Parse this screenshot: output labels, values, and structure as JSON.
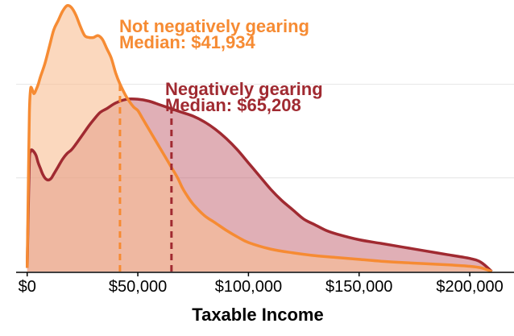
{
  "chart_data": {
    "type": "area",
    "xlabel": "Taxable Income",
    "xlim": [
      -5000,
      220000
    ],
    "ylim": [
      0,
      1.45
    ],
    "x_ticks": [
      {
        "value": 0,
        "label": "$0"
      },
      {
        "value": 50000,
        "label": "$50,000"
      },
      {
        "value": 100000,
        "label": "$100,000"
      },
      {
        "value": 150000,
        "label": "$150,000"
      },
      {
        "value": 200000,
        "label": "$200,000"
      }
    ],
    "y_gridlines": [
      0.5,
      1.0
    ],
    "grid": "horizontal",
    "series": [
      {
        "key": "not_neg",
        "color": "#f68b33",
        "fill": "#f8be93",
        "fill_opacity": 0.6,
        "x": [
          0,
          500,
          1000,
          1500,
          2000,
          3000,
          4000,
          5000,
          6000,
          8000,
          10000,
          12000,
          14000,
          16000,
          18000,
          20000,
          22000,
          24000,
          26000,
          28000,
          30000,
          32000,
          34000,
          36000,
          38000,
          40000,
          42000,
          45000,
          48000,
          50000,
          52000,
          55000,
          58000,
          60000,
          62000,
          65000,
          68000,
          70000,
          72000,
          75000,
          80000,
          85000,
          90000,
          95000,
          100000,
          110000,
          120000,
          130000,
          140000,
          150000,
          160000,
          170000,
          180000,
          190000,
          200000,
          205000,
          210000
        ],
        "y": [
          0.02,
          0.45,
          0.85,
          0.97,
          0.98,
          0.95,
          0.97,
          1.0,
          1.04,
          1.11,
          1.2,
          1.29,
          1.34,
          1.39,
          1.42,
          1.41,
          1.37,
          1.31,
          1.26,
          1.25,
          1.25,
          1.26,
          1.24,
          1.19,
          1.14,
          1.06,
          1.0,
          0.93,
          0.88,
          0.86,
          0.82,
          0.76,
          0.7,
          0.66,
          0.62,
          0.56,
          0.5,
          0.45,
          0.41,
          0.36,
          0.3,
          0.26,
          0.22,
          0.185,
          0.155,
          0.12,
          0.1,
          0.085,
          0.075,
          0.065,
          0.055,
          0.048,
          0.042,
          0.036,
          0.028,
          0.02,
          0.0
        ],
        "median": 41934,
        "annotation": [
          "Not negatively gearing",
          "Median: $41,934"
        ]
      },
      {
        "key": "neg",
        "color": "#a02a31",
        "fill": "#c2606d",
        "fill_opacity": 0.5,
        "x": [
          0,
          500,
          1000,
          1500,
          2000,
          3000,
          4000,
          5000,
          6000,
          7000,
          8000,
          9000,
          10000,
          11000,
          12000,
          14000,
          16000,
          18000,
          20000,
          22000,
          25000,
          28000,
          30000,
          33000,
          36000,
          40000,
          45000,
          50000,
          55000,
          60000,
          65000,
          70000,
          75000,
          80000,
          85000,
          90000,
          95000,
          100000,
          105000,
          110000,
          115000,
          120000,
          125000,
          130000,
          135000,
          140000,
          150000,
          160000,
          170000,
          180000,
          190000,
          200000,
          205000,
          210000
        ],
        "y": [
          0.02,
          0.33,
          0.6,
          0.64,
          0.65,
          0.64,
          0.62,
          0.58,
          0.55,
          0.52,
          0.5,
          0.49,
          0.49,
          0.5,
          0.52,
          0.56,
          0.6,
          0.63,
          0.65,
          0.68,
          0.73,
          0.78,
          0.81,
          0.85,
          0.87,
          0.9,
          0.92,
          0.92,
          0.91,
          0.89,
          0.87,
          0.85,
          0.83,
          0.8,
          0.76,
          0.71,
          0.65,
          0.58,
          0.51,
          0.44,
          0.38,
          0.33,
          0.28,
          0.25,
          0.22,
          0.2,
          0.17,
          0.15,
          0.13,
          0.11,
          0.09,
          0.07,
          0.05,
          0.0
        ],
        "median": 65208,
        "annotation": [
          "Negatively gearing",
          "Median: $65,208"
        ]
      }
    ]
  }
}
